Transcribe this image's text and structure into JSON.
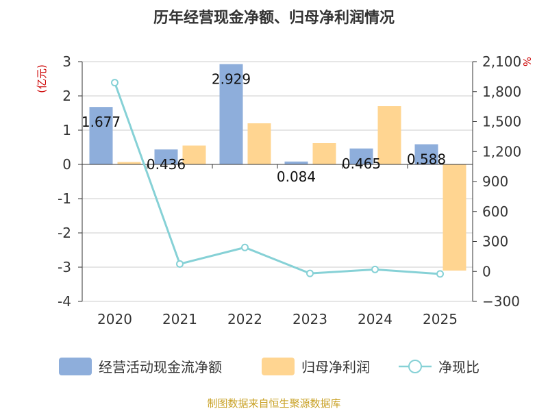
{
  "chart_data": {
    "type": "bar+line",
    "title": "历年经营现金净额、归母净利润情况",
    "categories": [
      "2020",
      "2021",
      "2022",
      "2023",
      "2024",
      "2025"
    ],
    "series": [
      {
        "name": "经营活动现金流净额",
        "type": "bar",
        "axis": "left",
        "color": "#8eaedb",
        "values": [
          1.677,
          0.436,
          2.929,
          0.084,
          0.465,
          0.588
        ],
        "labels": [
          "1.677",
          "0.436",
          "2.929",
          "0.084",
          "0.465",
          "0.588"
        ]
      },
      {
        "name": "归母净利润",
        "type": "bar",
        "axis": "left",
        "color": "#ffd591",
        "values": [
          0.07,
          0.55,
          1.2,
          0.62,
          1.7,
          -3.1
        ]
      },
      {
        "name": "净现比",
        "type": "line",
        "axis": "right",
        "color": "#86d1d6",
        "values": [
          1890,
          75,
          240,
          -20,
          20,
          -25
        ]
      }
    ],
    "y_left": {
      "label": "(亿元)",
      "min": -4,
      "max": 3,
      "ticks": [
        3,
        2,
        1,
        0,
        -1,
        -2,
        -3,
        -4
      ]
    },
    "y_right": {
      "label": "%",
      "min": -300,
      "max": 2100,
      "ticks": [
        2100,
        1800,
        1500,
        1200,
        900,
        600,
        300,
        0,
        -300
      ],
      "tick_labels": [
        "2,100",
        "1,800",
        "1,500",
        "1,200",
        "900",
        "600",
        "300",
        "0",
        "−300"
      ]
    },
    "legend": [
      "经营活动现金流净额",
      "归母净利润",
      "净现比"
    ],
    "source": "制图数据来自恒生聚源数据库"
  }
}
